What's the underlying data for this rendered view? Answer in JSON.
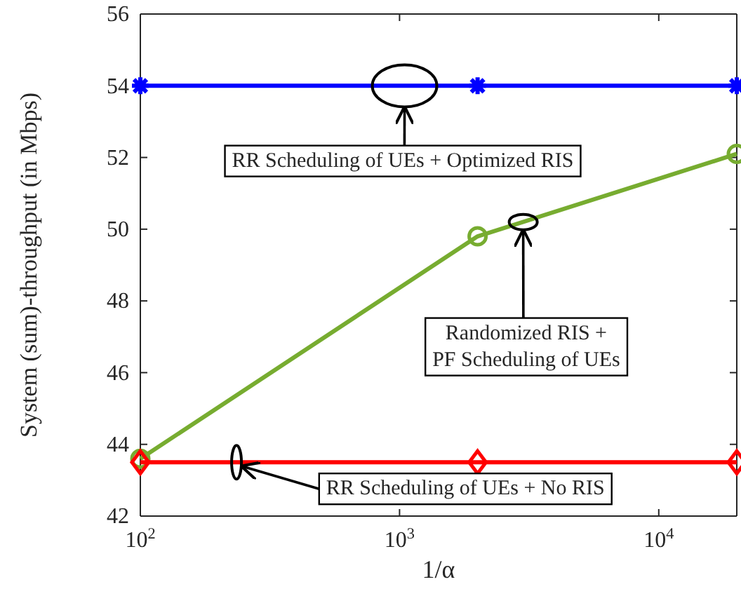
{
  "chart_data": {
    "type": "line",
    "xlabel": "1/α",
    "ylabel": "System (sum)-throughput (in Mbps)",
    "log": "x",
    "xlim": [
      100,
      20000
    ],
    "xticks": [
      {
        "value": 100,
        "label": "10$^{2}$"
      },
      {
        "value": 1000,
        "label": "10$^{3}$"
      },
      {
        "value": 10000,
        "label": "10$^{4}$"
      }
    ],
    "ylim": [
      42,
      56
    ],
    "yticks": [
      42,
      44,
      46,
      48,
      50,
      52,
      54,
      56
    ],
    "grid": false,
    "line_style": "solid",
    "series": [
      {
        "x": [
          100,
          2000,
          20000
        ],
        "values": [
          54,
          54,
          54
        ],
        "color": "#0000ff",
        "marker": "cross"
      },
      {
        "x": [
          100,
          2000,
          20000
        ],
        "values": [
          43.6,
          49.8,
          52.1
        ],
        "color": "#77ac30",
        "marker": "circle"
      },
      {
        "x": [
          100,
          2000,
          20000
        ],
        "values": [
          43.5,
          43.5,
          43.5
        ],
        "color": "#ff0000",
        "marker": "diamond"
      }
    ],
    "annotations": [
      "RR Scheduling of UEs + Optimized RIS",
      {
        "text": "Randomized RIS +\nPF Scheduling of UEs",
        "x": 3000,
        "y": 50.2
      },
      {
        "text": "RR Scheduling of UEs + No RIS",
        "x": 235,
        "y": 43.5
      }
    ]
  }
}
